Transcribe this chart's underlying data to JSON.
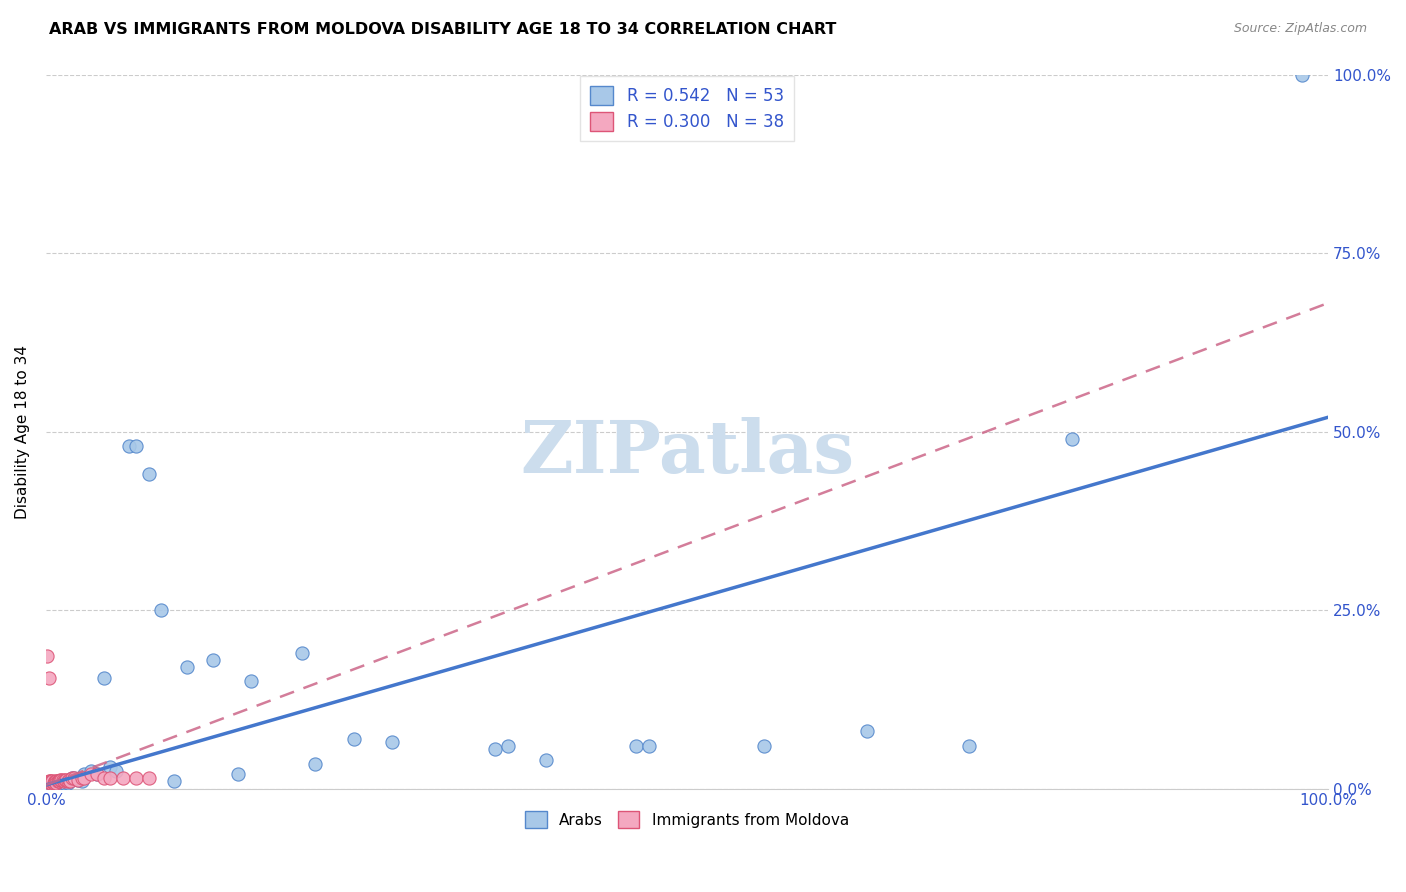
{
  "title": "ARAB VS IMMIGRANTS FROM MOLDOVA DISABILITY AGE 18 TO 34 CORRELATION CHART",
  "source": "Source: ZipAtlas.com",
  "ylabel": "Disability Age 18 to 34",
  "ytick_values": [
    0.0,
    0.25,
    0.5,
    0.75,
    1.0
  ],
  "ytick_labels": [
    "0.0%",
    "25.0%",
    "50.0%",
    "75.0%",
    "100.0%"
  ],
  "xtick_values": [
    0.0,
    1.0
  ],
  "xtick_labels": [
    "0.0%",
    "100.0%"
  ],
  "legend1_label": "R = 0.542   N = 53",
  "legend2_label": "R = 0.300   N = 38",
  "color_arab": "#a8c8e8",
  "color_moldova": "#f4a8c0",
  "edge_arab": "#5588cc",
  "edge_moldova": "#dd5577",
  "line_arab_color": "#4477cc",
  "line_moldova_color": "#cc6688",
  "watermark_color": "#ccdded",
  "arab_line_start_y": 0.005,
  "arab_line_end_y": 0.52,
  "moldova_line_start_y": 0.005,
  "moldova_line_end_y": 0.68,
  "arab_x": [
    0.002,
    0.003,
    0.004,
    0.005,
    0.006,
    0.007,
    0.007,
    0.008,
    0.009,
    0.009,
    0.01,
    0.01,
    0.011,
    0.012,
    0.013,
    0.014,
    0.015,
    0.016,
    0.017,
    0.018,
    0.02,
    0.022,
    0.025,
    0.028,
    0.03,
    0.035,
    0.04,
    0.045,
    0.05,
    0.055,
    0.065,
    0.07,
    0.08,
    0.09,
    0.1,
    0.11,
    0.13,
    0.15,
    0.16,
    0.2,
    0.21,
    0.24,
    0.27,
    0.35,
    0.36,
    0.39,
    0.46,
    0.47,
    0.56,
    0.64,
    0.72,
    0.8,
    0.98
  ],
  "arab_y": [
    0.005,
    0.005,
    0.004,
    0.006,
    0.005,
    0.007,
    0.006,
    0.007,
    0.006,
    0.008,
    0.008,
    0.01,
    0.01,
    0.01,
    0.01,
    0.008,
    0.01,
    0.01,
    0.008,
    0.01,
    0.015,
    0.015,
    0.012,
    0.01,
    0.02,
    0.025,
    0.02,
    0.155,
    0.03,
    0.025,
    0.48,
    0.48,
    0.44,
    0.25,
    0.01,
    0.17,
    0.18,
    0.02,
    0.15,
    0.19,
    0.035,
    0.07,
    0.065,
    0.055,
    0.06,
    0.04,
    0.06,
    0.06,
    0.06,
    0.08,
    0.06,
    0.49,
    1.0
  ],
  "moldova_x": [
    0.001,
    0.002,
    0.002,
    0.003,
    0.003,
    0.004,
    0.004,
    0.005,
    0.005,
    0.006,
    0.007,
    0.007,
    0.008,
    0.008,
    0.009,
    0.01,
    0.01,
    0.011,
    0.012,
    0.013,
    0.014,
    0.015,
    0.016,
    0.017,
    0.018,
    0.019,
    0.02,
    0.022,
    0.025,
    0.028,
    0.03,
    0.035,
    0.04,
    0.045,
    0.05,
    0.06,
    0.07,
    0.08
  ],
  "moldova_y": [
    0.185,
    0.155,
    0.01,
    0.01,
    0.008,
    0.01,
    0.008,
    0.009,
    0.01,
    0.008,
    0.01,
    0.009,
    0.01,
    0.008,
    0.01,
    0.01,
    0.01,
    0.012,
    0.012,
    0.012,
    0.01,
    0.012,
    0.012,
    0.01,
    0.012,
    0.01,
    0.015,
    0.015,
    0.012,
    0.015,
    0.015,
    0.02,
    0.02,
    0.015,
    0.015,
    0.015,
    0.015,
    0.015
  ]
}
